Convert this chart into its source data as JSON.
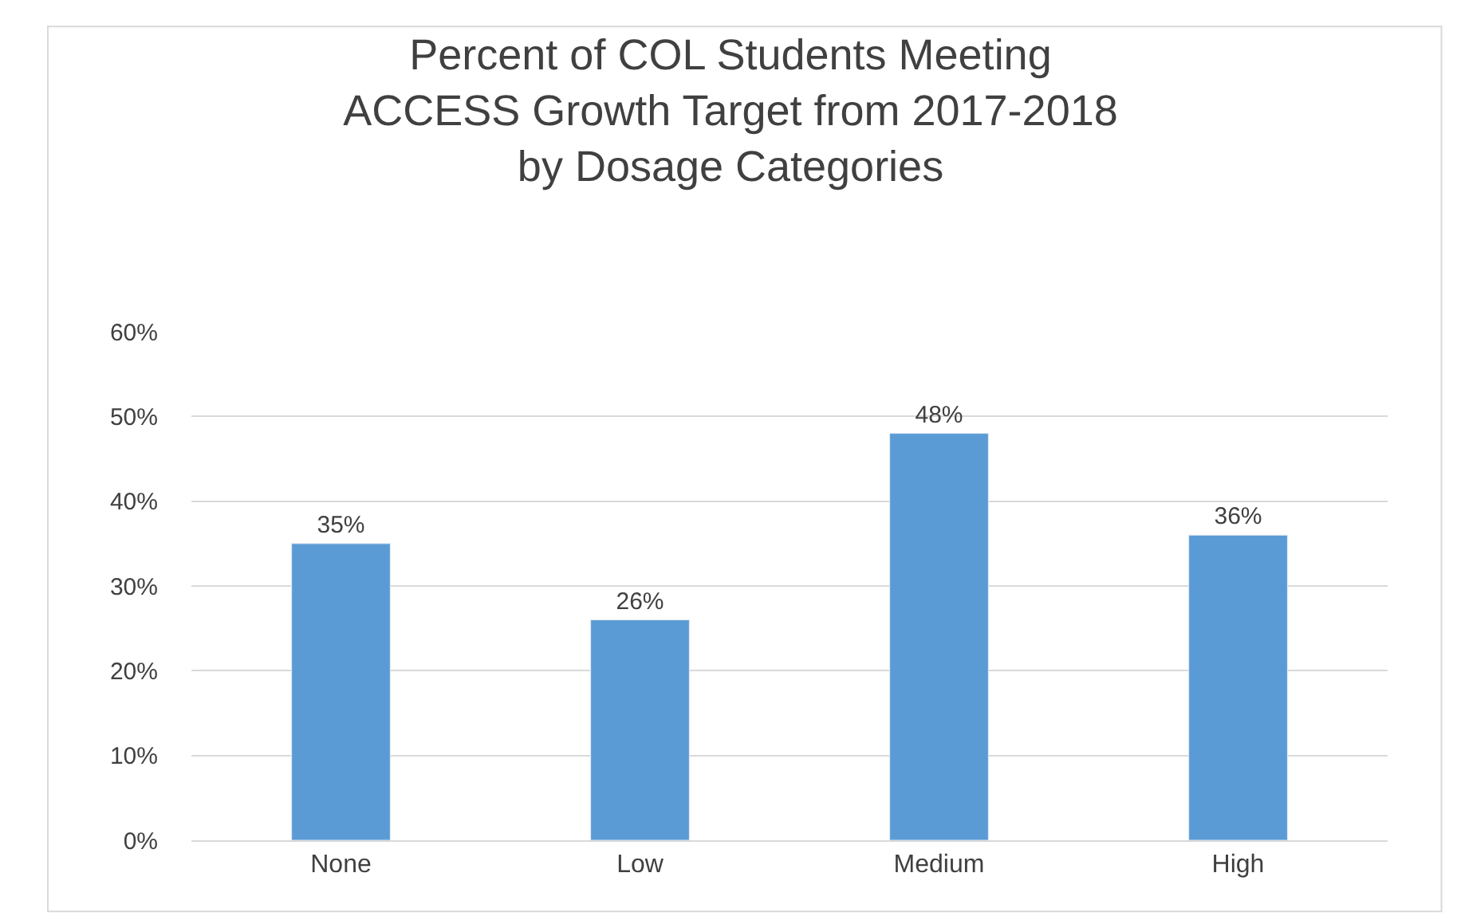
{
  "chart_data": {
    "type": "bar",
    "title": "Percent of COL Students Meeting\nACCESS Growth Target from 2017-2018\nby Dosage Categories",
    "categories": [
      "None",
      "Low",
      "Medium",
      "High"
    ],
    "values": [
      35,
      26,
      48,
      36
    ],
    "value_labels": [
      "35%",
      "26%",
      "48%",
      "36%"
    ],
    "color": "#5b9bd5",
    "ylim": [
      0,
      60
    ],
    "yticks": [
      {
        "value": 0,
        "label": "0%"
      },
      {
        "value": 10,
        "label": "10%"
      },
      {
        "value": 20,
        "label": "20%"
      },
      {
        "value": 30,
        "label": "30%"
      },
      {
        "value": 40,
        "label": "40%"
      },
      {
        "value": 50,
        "label": "50%"
      },
      {
        "value": 60,
        "label": "60%"
      }
    ],
    "grid": "y",
    "legend": false
  }
}
